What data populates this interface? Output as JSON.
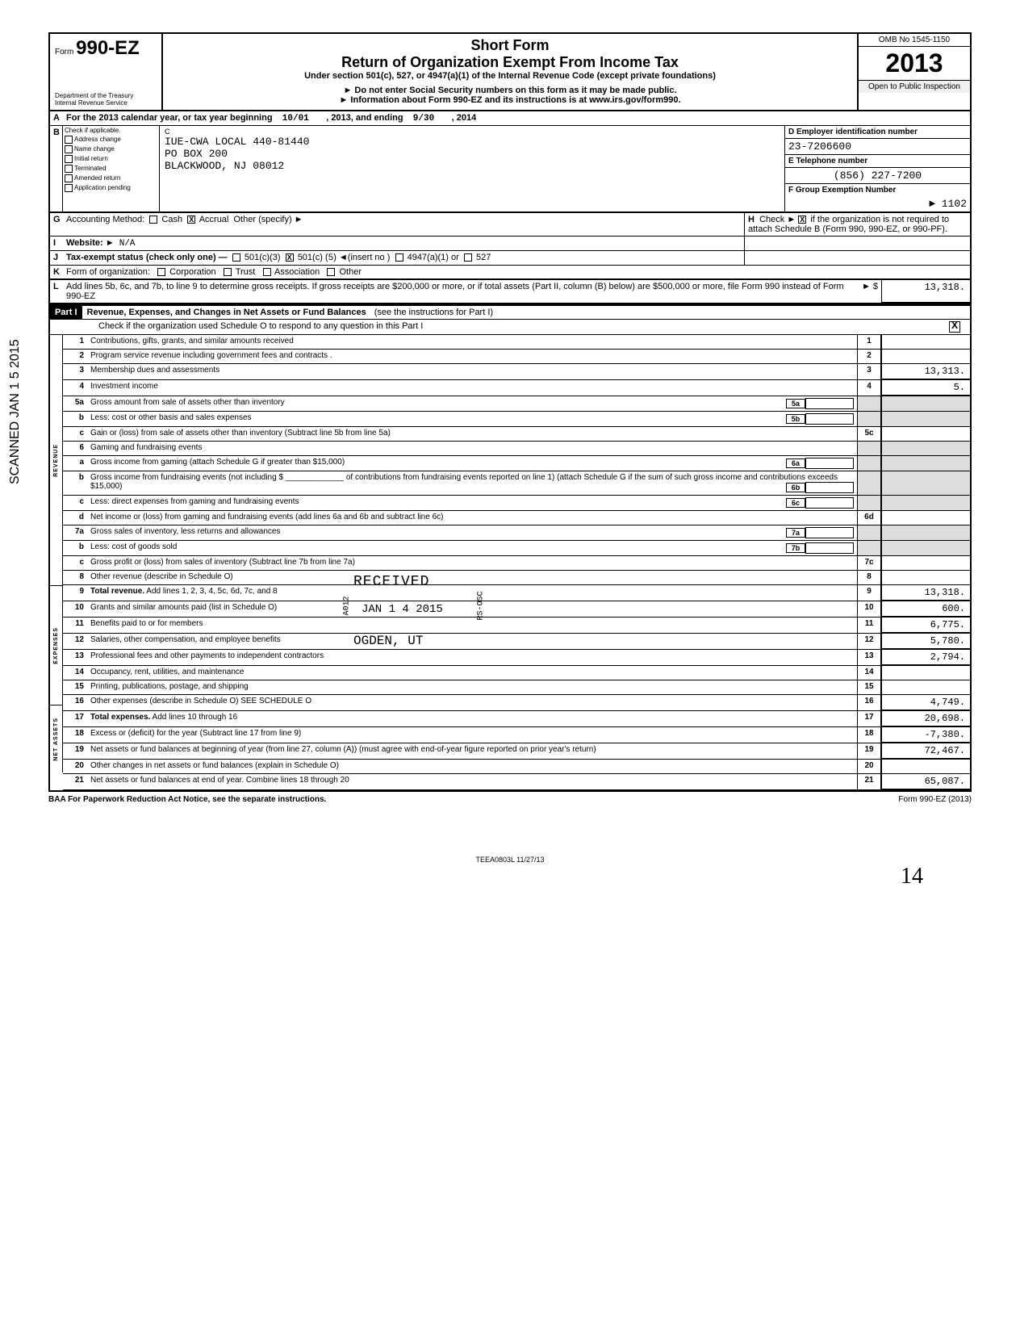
{
  "form": {
    "prefix": "Form",
    "number": "990-EZ",
    "short_form": "Short Form",
    "title": "Return of Organization Exempt From Income Tax",
    "subtitle": "Under section 501(c), 527, or 4947(a)(1) of the Internal Revenue Code (except private foundations)",
    "warn1": "► Do not enter Social Security numbers on this form as it may be made public.",
    "warn2": "► Information about Form 990-EZ and its instructions is at www.irs.gov/form990.",
    "omb": "OMB No 1545-1150",
    "year": "2013",
    "open": "Open to Public Inspection",
    "dept": "Department of the Treasury Internal Revenue Service"
  },
  "period": {
    "label_a": "A",
    "text": "For the 2013 calendar year, or tax year beginning",
    "begin": "10/01",
    "mid": ", 2013, and ending",
    "end": "9/30",
    "endyear": ", 2014"
  },
  "checks": {
    "label_b": "B",
    "hdr": "Check if applicable.",
    "c1": "Address change",
    "c2": "Name change",
    "c3": "Initial return",
    "c4": "Terminated",
    "c5": "Amended return",
    "c6": "Application pending"
  },
  "org": {
    "label_c": "C",
    "name": "IUE-CWA LOCAL 440-81440",
    "addr1": "PO BOX 200",
    "addr2": "BLACKWOOD, NJ 08012"
  },
  "right": {
    "d_label": "D   Employer identification number",
    "d_val": "23-7206600",
    "e_label": "E   Telephone number",
    "e_val": "(856) 227-7200",
    "f_label": "F   Group Exemption Number",
    "f_val": "► 1102"
  },
  "g": {
    "label": "G",
    "text": "Accounting Method:",
    "cash": "Cash",
    "accrual": "Accrual",
    "other": "Other (specify) ►",
    "checked": "X"
  },
  "h": {
    "label": "H",
    "text": "Check ►",
    "checked": "X",
    "rest": "if the organization is not required to attach Schedule B (Form 990, 990-EZ, or 990-PF)."
  },
  "i": {
    "label": "I",
    "text": "Website: ►",
    "val": "N/A"
  },
  "j": {
    "label": "J",
    "text": "Tax-exempt status (check only one) —",
    "o1": "501(c)(3)",
    "o2": "501(c) (",
    "o2val": "5",
    "o2rest": ") ◄(insert no )",
    "o2checked": "X",
    "o3": "4947(a)(1) or",
    "o4": "527"
  },
  "k": {
    "label": "K",
    "text": "Form of organization:",
    "o1": "Corporation",
    "o2": "Trust",
    "o3": "Association",
    "o4": "Other"
  },
  "l": {
    "label": "L",
    "text": "Add lines 5b, 6c, and 7b, to line 9 to determine gross receipts. If gross receipts are $200,000 or more, or if total assets (Part II, column (B) below) are $500,000 or more, file Form 990 instead of Form 990-EZ",
    "arrow": "► $",
    "val": "13,318."
  },
  "part1": {
    "label": "Part I",
    "title": "Revenue, Expenses, and Changes in Net Assets or Fund Balances",
    "paren": "(see the instructions for Part I)",
    "check": "Check if the organization used Schedule O to respond to any question in this Part I",
    "checked": "X"
  },
  "sections": {
    "rev": "REVENUE",
    "exp": "EXPENSES",
    "net": "NET ASSETS"
  },
  "lines": [
    {
      "n": "1",
      "label": "Contributions, gifts, grants, and similar amounts received",
      "col": "1",
      "val": ""
    },
    {
      "n": "2",
      "label": "Program service revenue including government fees and contracts .",
      "col": "2",
      "val": ""
    },
    {
      "n": "3",
      "label": "Membership dues and assessments",
      "col": "3",
      "val": "13,313."
    },
    {
      "n": "4",
      "label": "Investment income",
      "col": "4",
      "val": "5."
    },
    {
      "n": "5a",
      "label": "Gross amount from sale of assets other than inventory",
      "inner": "5a",
      "col": "",
      "val": "",
      "shaded": true
    },
    {
      "n": "b",
      "label": "Less: cost or other basis and sales expenses",
      "inner": "5b",
      "col": "",
      "val": "",
      "shaded": true
    },
    {
      "n": "c",
      "label": "Gain or (loss) from sale of assets other than inventory (Subtract line 5b from line 5a)",
      "col": "5c",
      "val": ""
    },
    {
      "n": "6",
      "label": "Gaming and fundraising events",
      "col": "",
      "val": "",
      "shaded": true
    },
    {
      "n": "a",
      "label": "Gross income from gaming (attach Schedule G if greater than $15,000)",
      "inner": "6a",
      "col": "",
      "val": "",
      "shaded": true
    },
    {
      "n": "b",
      "label": "Gross income from fundraising events (not including $ _____________ of contributions from fundraising events reported on line 1) (attach Schedule G if the sum of such gross income and contributions exceeds $15,000)",
      "inner": "6b",
      "col": "",
      "val": "",
      "shaded": true
    },
    {
      "n": "c",
      "label": "Less: direct expenses from gaming and fundraising events",
      "inner": "6c",
      "col": "",
      "val": "",
      "shaded": true
    },
    {
      "n": "d",
      "label": "Net income or (loss) from gaming and fundraising events (add lines 6a and 6b and subtract line 6c)",
      "col": "6d",
      "val": ""
    },
    {
      "n": "7a",
      "label": "Gross sales of inventory, less returns and allowances",
      "inner": "7a",
      "col": "",
      "val": "",
      "shaded": true
    },
    {
      "n": "b",
      "label": "Less: cost of goods sold",
      "inner": "7b",
      "col": "",
      "val": "",
      "shaded": true
    },
    {
      "n": "c",
      "label": "Gross profit or (loss) from sales of inventory (Subtract line 7b from line 7a)",
      "col": "7c",
      "val": ""
    },
    {
      "n": "8",
      "label": "Other revenue (describe in Schedule O)",
      "col": "8",
      "val": ""
    },
    {
      "n": "9",
      "label": "Total revenue. Add lines 1, 2, 3, 4, 5c, 6d, 7c, and 8",
      "col": "9",
      "val": "13,318.",
      "bold": true,
      "arrow": true
    },
    {
      "n": "10",
      "label": "Grants and similar amounts paid (list in Schedule O)",
      "col": "10",
      "val": "600."
    },
    {
      "n": "11",
      "label": "Benefits paid to or for members",
      "col": "11",
      "val": "6,775."
    },
    {
      "n": "12",
      "label": "Salaries, other compensation, and employee benefits",
      "col": "12",
      "val": "5,780."
    },
    {
      "n": "13",
      "label": "Professional fees and other payments to independent contractors",
      "col": "13",
      "val": "2,794."
    },
    {
      "n": "14",
      "label": "Occupancy, rent, utilities, and maintenance",
      "col": "14",
      "val": ""
    },
    {
      "n": "15",
      "label": "Printing, publications, postage, and shipping",
      "col": "15",
      "val": ""
    },
    {
      "n": "16",
      "label": "Other expenses (describe in Schedule O)                             SEE SCHEDULE O",
      "col": "16",
      "val": "4,749."
    },
    {
      "n": "17",
      "label": "Total expenses. Add lines 10 through 16",
      "col": "17",
      "val": "20,698.",
      "bold": true,
      "arrow": true
    },
    {
      "n": "18",
      "label": "Excess or (deficit) for the year (Subtract line 17 from line 9)",
      "col": "18",
      "val": "-7,380."
    },
    {
      "n": "19",
      "label": "Net assets or fund balances at beginning of year (from line 27, column (A)) (must agree with end-of-year figure reported on prior year's return)",
      "col": "19",
      "val": "72,467."
    },
    {
      "n": "20",
      "label": "Other changes in net assets or fund balances (explain in Schedule O)",
      "col": "20",
      "val": ""
    },
    {
      "n": "21",
      "label": "Net assets or fund balances at end of year. Combine lines 18 through 20",
      "col": "21",
      "val": "65,087.",
      "arrow": true
    }
  ],
  "stamp": {
    "received": "RECEIVED",
    "date": "JAN 1 4 2015",
    "loc": "OGDEN, UT",
    "side1": "A012",
    "side2": "RS-OSC"
  },
  "footer": {
    "baa": "BAA  For Paperwork Reduction Act Notice, see the separate instructions.",
    "form": "Form 990-EZ (2013)",
    "code": "TEEA0803L   11/27/13"
  },
  "scanned": "SCANNED JAN 1 5 2015",
  "pagenum": "14"
}
